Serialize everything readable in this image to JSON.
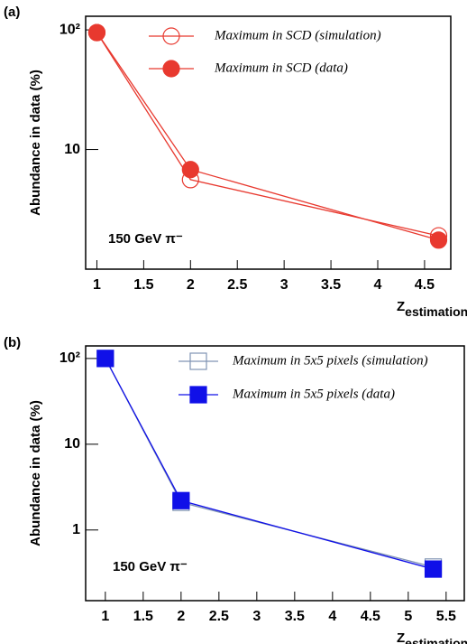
{
  "chart_data": [
    {
      "type": "line",
      "title": "(a)",
      "ylabel": "Abundance in data (%)",
      "xlabel": "Z",
      "xlabel_sub": "estimation",
      "annotation": "150 GeV π⁻",
      "yscale": "log",
      "legend": "upper right",
      "x": [
        1,
        2,
        4.65
      ],
      "series": [
        {
          "name": "Maximum in SCD (simulation)",
          "color": "#e8392f",
          "marker": "circle-open",
          "values": [
            95,
            5.6,
            1.9
          ]
        },
        {
          "name": "Maximum in SCD (data)",
          "color": "#e8392f",
          "marker": "circle-filled",
          "values": [
            95,
            6.8,
            1.75
          ]
        }
      ],
      "xlim": [
        0.88,
        4.78
      ],
      "xticks": [
        1,
        1.5,
        2,
        2.5,
        3,
        3.5,
        4,
        4.5
      ],
      "ylim": [
        1,
        130
      ],
      "yticks": [
        10,
        {
          "value": 100,
          "label": "10²"
        }
      ]
    },
    {
      "type": "line",
      "title": "(b)",
      "ylabel": "Abundance in data (%)",
      "xlabel": "Z",
      "xlabel_sub": "estimation",
      "annotation": "150 GeV π⁻",
      "yscale": "log",
      "legend": "upper right",
      "x": [
        1,
        2,
        5.33
      ],
      "series": [
        {
          "name": "Maximum in 5x5 pixels (simulation)",
          "color": "#8094b4",
          "marker": "square-open",
          "values": [
            100,
            2.1,
            0.37
          ]
        },
        {
          "name": "Maximum in 5x5 pixels (data)",
          "color": "#1010e8",
          "marker": "square-filled",
          "values": [
            100,
            2.2,
            0.35
          ]
        }
      ],
      "xlim": [
        0.74,
        5.74
      ],
      "xticks": [
        1,
        1.5,
        2,
        2.5,
        3,
        3.5,
        4,
        4.5,
        5,
        5.5
      ],
      "ylim": [
        0.15,
        140
      ],
      "yticks": [
        1,
        10,
        {
          "value": 100,
          "label": "10²"
        }
      ]
    }
  ]
}
